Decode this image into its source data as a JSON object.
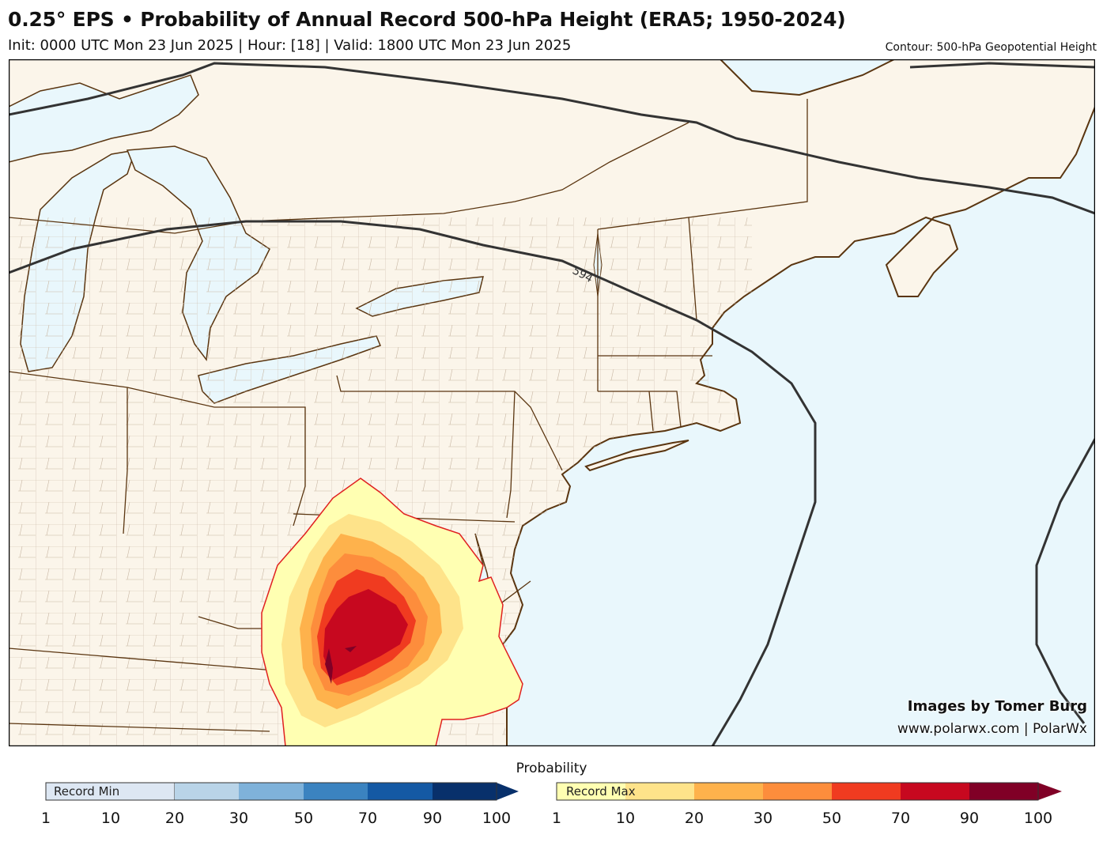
{
  "header": {
    "title": "0.25° EPS • Probability of Annual Record 500-hPa Height (ERA5; 1950-2024)",
    "subtitle": "Init: 0000 UTC Mon 23 Jun 2025 | Hour: [18] | Valid: 1800 UTC Mon 23 Jun 2025",
    "contour_note": "Contour: 500-hPa Geopotential Height"
  },
  "map": {
    "contour_label": "594",
    "region": "Northeastern United States and southeastern Canada",
    "colors": {
      "land": "#fbf5ea",
      "water": "#e9f7fc",
      "borders": "#5a3510",
      "contour": "#333333",
      "outline": "#e02020"
    }
  },
  "credits": {
    "line1": "Images by Tomer Burg",
    "line2": "www.polarwx.com | PolarWx"
  },
  "legend": {
    "title": "Probability",
    "min_label": "Record Min",
    "max_label": "Record Max",
    "min_colors": [
      "#dde7f3",
      "#b9d4e8",
      "#7fb2da",
      "#3b83c0",
      "#1459a4",
      "#08306b"
    ],
    "max_colors": [
      "#ffffb2",
      "#fee38a",
      "#feb24c",
      "#fd8d3c",
      "#f03b20",
      "#c7081f",
      "#800026"
    ],
    "ticks": [
      "1",
      "10",
      "20",
      "30",
      "50",
      "70",
      "90",
      "100"
    ]
  }
}
